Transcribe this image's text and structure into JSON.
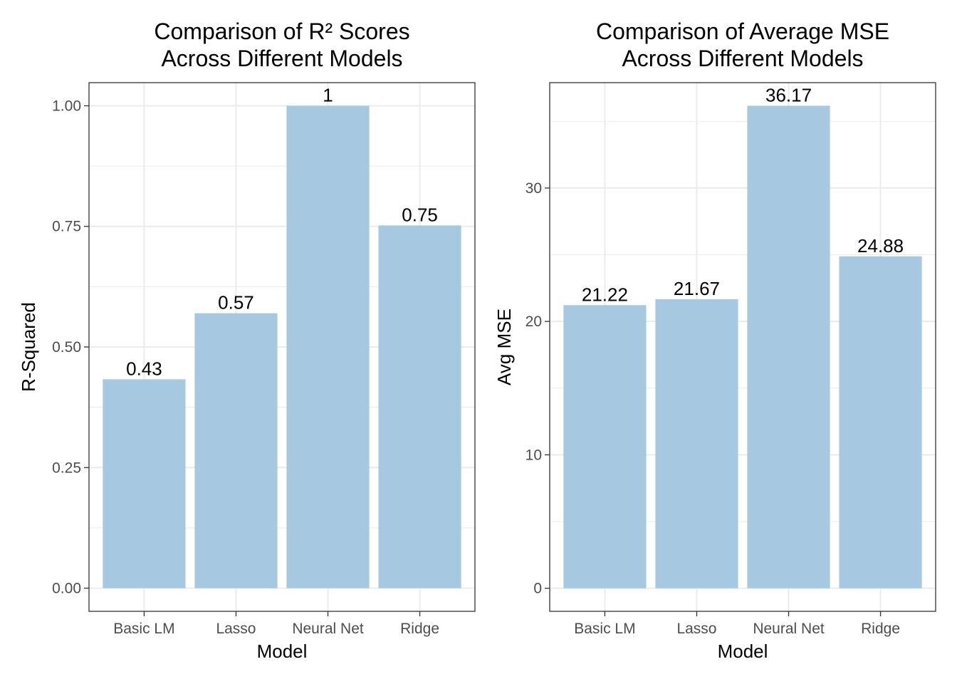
{
  "chart_data": [
    {
      "type": "bar",
      "title_lines": [
        "Comparison of R² Scores",
        "Across Different Models"
      ],
      "xlabel": "Model",
      "ylabel": "R-Squared",
      "categories": [
        "Basic LM",
        "Lasso",
        "Neural Net",
        "Ridge"
      ],
      "values": [
        0.433,
        0.57,
        1.0,
        0.752
      ],
      "value_labels": [
        "0.43",
        "0.57",
        "1",
        "0.75"
      ],
      "ylim": [
        -0.048,
        1.048
      ],
      "yticks": [
        0,
        0.25,
        0.5,
        0.75,
        1.0
      ],
      "ytick_labels": [
        "0.00",
        "0.25",
        "0.50",
        "0.75",
        "1.00"
      ],
      "bar_color": "#a6c8e0",
      "grid": true,
      "legend": "none"
    },
    {
      "type": "bar",
      "title_lines": [
        "Comparison of Average MSE",
        "Across Different Models"
      ],
      "xlabel": "Model",
      "ylabel": "Avg MSE",
      "categories": [
        "Basic LM",
        "Lasso",
        "Neural Net",
        "Ridge"
      ],
      "values": [
        21.22,
        21.67,
        36.17,
        24.88
      ],
      "value_labels": [
        "21.22",
        "21.67",
        "36.17",
        "24.88"
      ],
      "ylim": [
        -1.73,
        37.9
      ],
      "yticks": [
        0,
        10,
        20,
        30
      ],
      "ytick_labels": [
        "0",
        "10",
        "20",
        "30"
      ],
      "bar_color": "#a6c8e0",
      "grid": true,
      "legend": "none"
    }
  ]
}
